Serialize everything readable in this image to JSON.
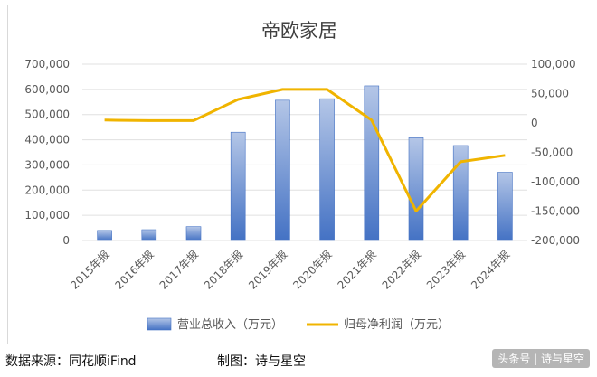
{
  "chart_data": {
    "type": "bar",
    "title": "帝欧家居",
    "categories": [
      "2015年报",
      "2016年报",
      "2017年报",
      "2018年报",
      "2019年报",
      "2020年报",
      "2021年报",
      "2022年报",
      "2023年报",
      "2024年报"
    ],
    "series": [
      {
        "name": "营业总收入（万元）",
        "type": "bar",
        "axis": "left",
        "values": [
          40000,
          43000,
          55000,
          430000,
          557000,
          563000,
          614000,
          408000,
          377000,
          271000
        ]
      },
      {
        "name": "归母净利润（万元）",
        "type": "line",
        "axis": "right",
        "values": [
          5000,
          4000,
          4000,
          40000,
          57000,
          57000,
          5000,
          -150000,
          -66000,
          -55000
        ]
      }
    ],
    "left_axis": {
      "min": 0,
      "max": 700000,
      "step": 100000,
      "ticks": [
        "0",
        "100,000",
        "200,000",
        "300,000",
        "400,000",
        "500,000",
        "600,000",
        "700,000"
      ]
    },
    "right_axis": {
      "min": -200000,
      "max": 100000,
      "step": 50000,
      "ticks": [
        "-200,000",
        "-150,000",
        "-100,000",
        "-50,000",
        "0",
        "50,000",
        "100,000"
      ]
    },
    "grid": true,
    "legend_position": "bottom",
    "colors": {
      "bar_top": "#b4c6e7",
      "bar_bottom": "#4472c4",
      "line": "#f0b400",
      "grid": "#e0e0e0",
      "text": "#595959"
    }
  },
  "footer": {
    "source": "数据来源：同花顺iFind",
    "author": "制图：诗与星空",
    "watermark": "头条号 | 诗与星空"
  }
}
